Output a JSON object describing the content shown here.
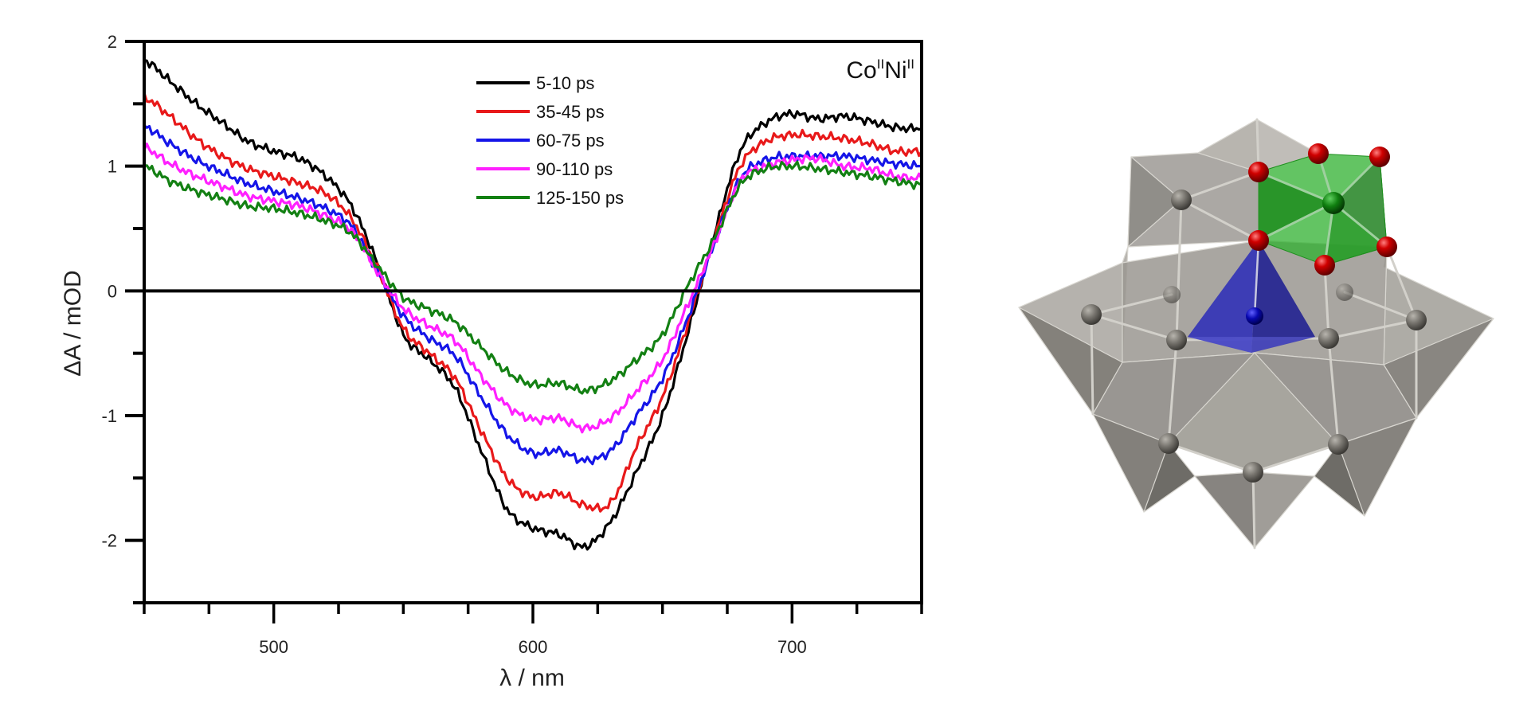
{
  "chart_data": {
    "type": "line",
    "title": "",
    "annotation": {
      "base1": "Co",
      "sup1": "II",
      "base2": "Ni",
      "sup2": "II"
    },
    "xlabel": "λ / nm",
    "ylabel": "ΔA / mOD",
    "xlim": [
      450,
      750
    ],
    "ylim": [
      -2.5,
      2
    ],
    "xticks": [
      500,
      600,
      700
    ],
    "xminor_step": 25,
    "yticks": [
      -2,
      -1,
      0,
      1,
      2
    ],
    "yminor_step": 0.5,
    "zero_line": true,
    "grid": false,
    "legend_position": "top-center",
    "x": [
      450,
      460,
      470,
      480,
      490,
      500,
      510,
      520,
      530,
      540,
      550,
      560,
      570,
      580,
      590,
      600,
      610,
      620,
      630,
      640,
      650,
      660,
      670,
      680,
      690,
      700,
      710,
      720,
      730,
      740,
      750
    ],
    "series": [
      {
        "name": "5-10 ps",
        "color": "#000000",
        "values": [
          1.85,
          1.68,
          1.5,
          1.35,
          1.2,
          1.12,
          1.06,
          0.92,
          0.68,
          0.22,
          -0.35,
          -0.55,
          -0.78,
          -1.28,
          -1.75,
          -1.9,
          -1.95,
          -2.05,
          -1.85,
          -1.45,
          -1.0,
          -0.32,
          0.45,
          1.12,
          1.35,
          1.42,
          1.38,
          1.4,
          1.36,
          1.31,
          1.3
        ]
      },
      {
        "name": "35-45 ps",
        "color": "#e8191a",
        "values": [
          1.55,
          1.4,
          1.22,
          1.08,
          0.98,
          0.92,
          0.86,
          0.78,
          0.58,
          0.18,
          -0.3,
          -0.5,
          -0.7,
          -1.12,
          -1.5,
          -1.65,
          -1.62,
          -1.72,
          -1.7,
          -1.25,
          -0.85,
          -0.25,
          0.42,
          1.0,
          1.2,
          1.25,
          1.24,
          1.22,
          1.18,
          1.12,
          1.12
        ]
      },
      {
        "name": "60-75 ps",
        "color": "#1515e8",
        "values": [
          1.32,
          1.18,
          1.05,
          0.95,
          0.86,
          0.8,
          0.74,
          0.66,
          0.52,
          0.16,
          -0.2,
          -0.38,
          -0.52,
          -0.85,
          -1.15,
          -1.3,
          -1.28,
          -1.36,
          -1.28,
          -1.0,
          -0.7,
          -0.2,
          0.38,
          0.9,
          1.05,
          1.08,
          1.08,
          1.08,
          1.05,
          1.02,
          1.0
        ]
      },
      {
        "name": "90-110 ps",
        "color": "#ff20ff",
        "values": [
          1.15,
          1.02,
          0.92,
          0.84,
          0.76,
          0.72,
          0.68,
          0.6,
          0.48,
          0.15,
          -0.14,
          -0.28,
          -0.4,
          -0.68,
          -0.92,
          -1.03,
          -1.02,
          -1.1,
          -1.02,
          -0.8,
          -0.55,
          -0.1,
          0.38,
          0.88,
          1.0,
          1.05,
          1.06,
          1.0,
          0.98,
          0.92,
          0.9
        ]
      },
      {
        "name": "125-150 ps",
        "color": "#138013",
        "values": [
          1.0,
          0.88,
          0.8,
          0.74,
          0.68,
          0.66,
          0.62,
          0.56,
          0.46,
          0.2,
          -0.05,
          -0.15,
          -0.25,
          -0.45,
          -0.65,
          -0.75,
          -0.74,
          -0.8,
          -0.72,
          -0.55,
          -0.35,
          0.05,
          0.42,
          0.85,
          0.98,
          1.0,
          0.98,
          0.95,
          0.92,
          0.88,
          0.85
        ]
      }
    ]
  },
  "figure": {
    "structure_label": "polyoxometalate structure with CoII (blue tetrahedron) and NiII (green octahedron)",
    "colors": {
      "gray": "#8a8782",
      "green": "#2fa52f",
      "blue": "#2323b4",
      "oxygen": "#d00000"
    }
  }
}
